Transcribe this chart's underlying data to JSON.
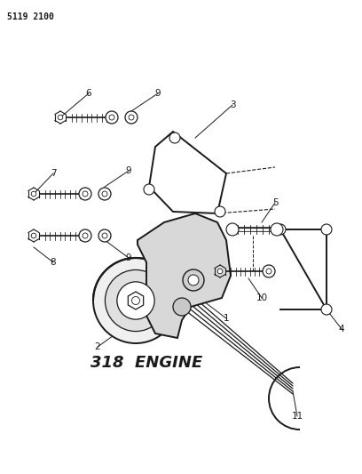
{
  "bg_color": "#ffffff",
  "line_color": "#1a1a1a",
  "part_number_text": "5119 2100",
  "engine_label": "318  ENGINE",
  "engine_label_fontsize": 13,
  "part_number_fontsize": 7,
  "label_fontsize": 7.5,
  "figsize": [
    4.08,
    5.33
  ],
  "dpi": 100
}
